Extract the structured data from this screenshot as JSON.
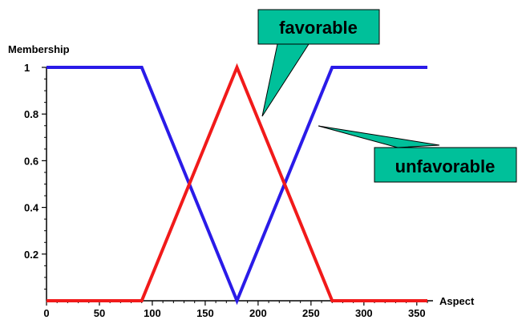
{
  "chart_data": {
    "type": "line",
    "title": "",
    "xlabel": "Aspect",
    "ylabel": "Membership",
    "xlim": [
      0,
      360
    ],
    "ylim": [
      0,
      1
    ],
    "x_ticks": [
      "0",
      "50",
      "100",
      "150",
      "200",
      "250",
      "300",
      "350"
    ],
    "y_ticks": [
      "0.2",
      "0.4",
      "0.6",
      "0.8",
      "1"
    ],
    "grid": false,
    "series": [
      {
        "name": "unfavorable",
        "color": "#2A1BE8",
        "x": [
          0,
          90,
          180,
          270,
          360
        ],
        "y": [
          1,
          1,
          0,
          1,
          1
        ]
      },
      {
        "name": "favorable",
        "color": "#F11A1A",
        "x": [
          0,
          90,
          180,
          270,
          360
        ],
        "y": [
          0,
          0,
          1,
          0,
          0
        ]
      }
    ],
    "callout_color": "#00C09A"
  }
}
